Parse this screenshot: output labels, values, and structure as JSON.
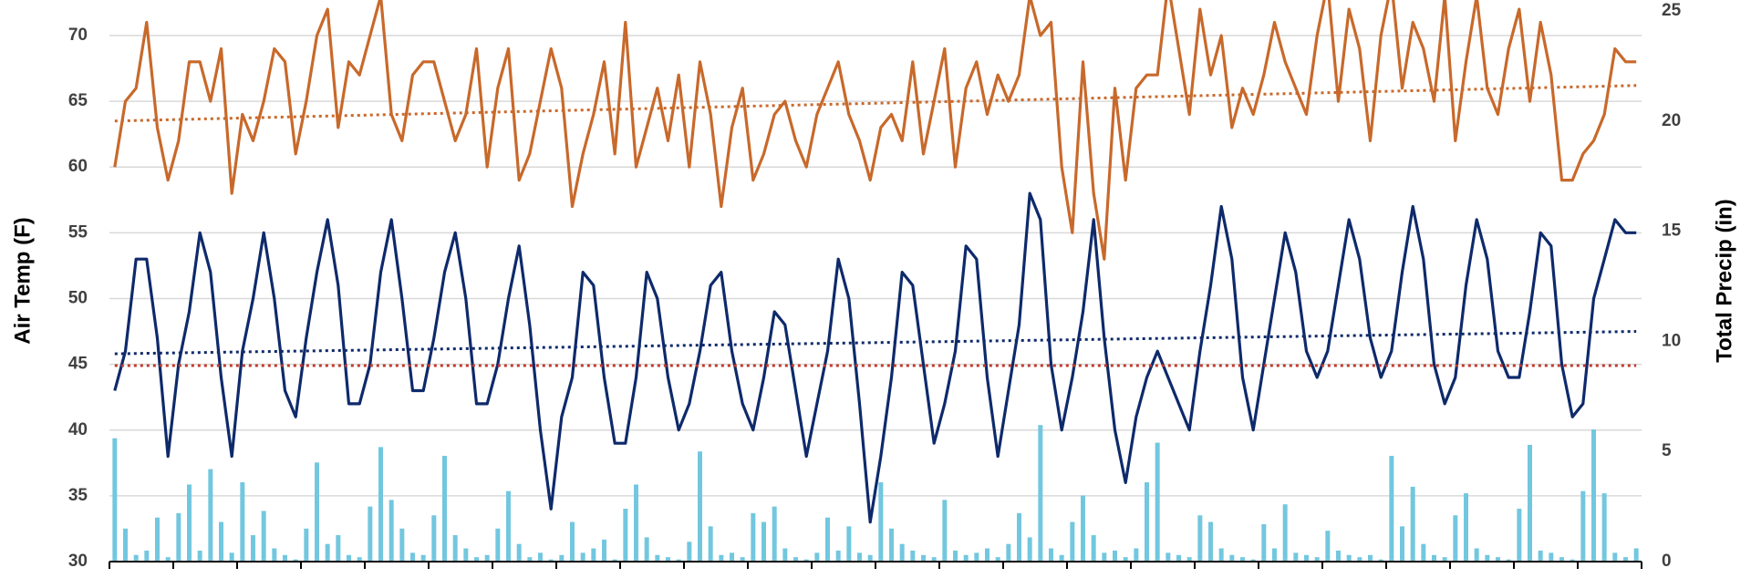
{
  "chart_data": {
    "type": "line",
    "y_label": "Air Temp (F)",
    "y2_label": "Total Precip (in)",
    "categories": [
      null,
      null,
      null,
      null,
      null,
      null,
      null,
      null,
      null,
      null,
      null,
      null,
      null,
      null,
      null,
      null,
      null,
      null,
      null,
      null,
      null,
      null,
      null,
      null,
      null,
      null,
      null,
      null,
      null,
      null,
      null,
      null,
      null,
      null,
      null,
      null,
      null,
      null,
      null,
      null,
      null,
      null,
      null,
      null,
      null,
      null,
      null,
      null,
      null,
      null,
      null,
      null,
      null,
      null,
      null,
      null,
      null,
      null,
      null,
      null,
      null,
      null,
      null,
      null,
      null,
      null,
      null,
      null,
      null,
      null,
      null,
      null,
      null,
      null,
      null,
      null,
      null,
      null,
      null,
      null,
      null,
      null,
      null,
      null,
      null,
      null,
      null,
      null,
      null,
      null,
      null,
      null,
      null,
      null,
      null,
      null,
      null,
      null,
      null,
      null,
      null,
      null,
      null,
      null,
      null,
      null,
      null,
      null,
      null,
      null,
      null,
      null,
      null,
      null,
      null,
      null,
      null,
      null,
      null,
      null,
      null,
      null,
      null,
      null,
      null,
      null,
      null,
      null,
      null,
      null,
      null,
      null,
      null,
      null,
      null,
      null,
      null,
      null,
      null,
      null,
      null,
      null,
      null,
      null
    ],
    "series": [
      {
        "type": "bar",
        "axis": "y2",
        "color": "#72c7df",
        "values": [
          5.6,
          1.5,
          0.3,
          0.5,
          2,
          0.2,
          2.2,
          3.5,
          0.5,
          4.2,
          1.8,
          0.4,
          3.6,
          1.2,
          2.3,
          0.6,
          0.3,
          0.1,
          1.5,
          4.5,
          0.8,
          1.2,
          0.3,
          0.2,
          2.5,
          5.2,
          2.8,
          1.5,
          0.4,
          0.3,
          2.1,
          4.8,
          1.2,
          0.6,
          0.2,
          0.3,
          1.5,
          3.2,
          0.8,
          0.2,
          0.4,
          0.1,
          0.3,
          1.8,
          0.4,
          0.6,
          1.0,
          0.1,
          2.4,
          3.5,
          1.1,
          0.3,
          0.2,
          0.1,
          0.9,
          5.0,
          1.6,
          0.3,
          0.4,
          0.2,
          2.2,
          1.8,
          2.5,
          0.6,
          0.2,
          0.1,
          0.4,
          2.0,
          0.5,
          1.6,
          0.4,
          0.3,
          3.6,
          1.5,
          0.8,
          0.5,
          0.3,
          0.2,
          2.8,
          0.5,
          0.3,
          0.4,
          0.6,
          0.2,
          0.8,
          2.2,
          1.1,
          6.2,
          0.6,
          0.3,
          1.8,
          3.0,
          1.2,
          0.4,
          0.5,
          0.2,
          0.6,
          3.6,
          5.4,
          0.4,
          0.3,
          0.2,
          2.1,
          1.8,
          0.6,
          0.3,
          0.2,
          0.1,
          1.7,
          0.6,
          2.6,
          0.4,
          0.3,
          0.2,
          1.4,
          0.5,
          0.3,
          0.2,
          0.3,
          0.1,
          4.8,
          1.6,
          3.4,
          0.8,
          0.3,
          0.2,
          2.1,
          3.1,
          0.6,
          0.3,
          0.2,
          0.1,
          2.4,
          5.3,
          0.5,
          0.4,
          0.2,
          0.1,
          3.2,
          6.0,
          3.1,
          0.4,
          0.2,
          0.6
        ]
      },
      {
        "type": "line",
        "color": "#c8692b",
        "values": [
          60,
          65,
          66,
          71,
          63,
          59,
          62,
          68,
          68,
          65,
          69,
          58,
          64,
          62,
          65,
          69,
          68,
          61,
          65,
          70,
          72,
          63,
          68,
          67,
          70,
          73,
          64,
          62,
          67,
          68,
          68,
          65,
          62,
          64,
          69,
          60,
          66,
          69,
          59,
          61,
          65,
          69,
          66,
          57,
          61,
          64,
          68,
          61,
          71,
          60,
          63,
          66,
          62,
          67,
          60,
          68,
          64,
          57,
          63,
          66,
          59,
          61,
          64,
          65,
          62,
          60,
          64,
          66,
          68,
          64,
          62,
          59,
          63,
          64,
          62,
          68,
          61,
          65,
          69,
          60,
          66,
          68,
          64,
          67,
          65,
          67,
          73,
          70,
          71,
          60,
          55,
          68,
          58,
          53,
          66,
          59,
          66,
          67,
          67,
          74,
          69,
          64,
          72,
          67,
          70,
          63,
          66,
          64,
          67,
          71,
          68,
          66,
          64,
          70,
          74,
          65,
          72,
          69,
          62,
          70,
          74,
          66,
          71,
          69,
          65,
          73,
          62,
          68,
          73,
          66,
          64,
          69,
          72,
          65,
          71,
          67,
          59,
          59,
          61,
          62,
          64,
          69,
          68,
          68
        ]
      },
      {
        "type": "line",
        "color": "#0e2a6b",
        "values": [
          43,
          46,
          53,
          53,
          47,
          38,
          45,
          49,
          55,
          52,
          44,
          38,
          46,
          50,
          55,
          50,
          43,
          41,
          47,
          52,
          56,
          51,
          42,
          42,
          45,
          52,
          56,
          50,
          43,
          43,
          47,
          52,
          55,
          50,
          42,
          42,
          45,
          50,
          54,
          48,
          40,
          34,
          41,
          44,
          52,
          51,
          44,
          39,
          39,
          44,
          52,
          50,
          44,
          40,
          42,
          46,
          51,
          52,
          46,
          42,
          40,
          44,
          49,
          48,
          43,
          38,
          42,
          46,
          53,
          50,
          42,
          33,
          38,
          44,
          52,
          51,
          45,
          39,
          42,
          46,
          54,
          53,
          44,
          38,
          43,
          48,
          58,
          56,
          45,
          40,
          44,
          49,
          56,
          47,
          40,
          36,
          41,
          44,
          46,
          44,
          42,
          40,
          46,
          51,
          57,
          53,
          44,
          40,
          45,
          50,
          55,
          52,
          46,
          44,
          46,
          51,
          56,
          53,
          47,
          44,
          46,
          52,
          57,
          53,
          45,
          42,
          44,
          51,
          56,
          53,
          46,
          44,
          44,
          49,
          55,
          54,
          45,
          41,
          42,
          50,
          53,
          56,
          55,
          55
        ]
      }
    ],
    "trendlines": [
      {
        "color": "#c8692b",
        "values": [
          63.5,
          66.2
        ]
      },
      {
        "color": "#0e2a6b",
        "values": [
          45.8,
          47.5
        ]
      },
      {
        "color": "#c0392b",
        "values": [
          44.9,
          44.9
        ]
      }
    ],
    "ylim": [
      30,
      72.7
    ],
    "yticks": [
      30,
      35,
      40,
      45,
      50,
      55,
      60,
      65,
      70
    ],
    "y2lim": [
      0,
      25.5
    ],
    "y2ticks": [
      0,
      5,
      10,
      15,
      20,
      25
    ],
    "grid": true
  }
}
